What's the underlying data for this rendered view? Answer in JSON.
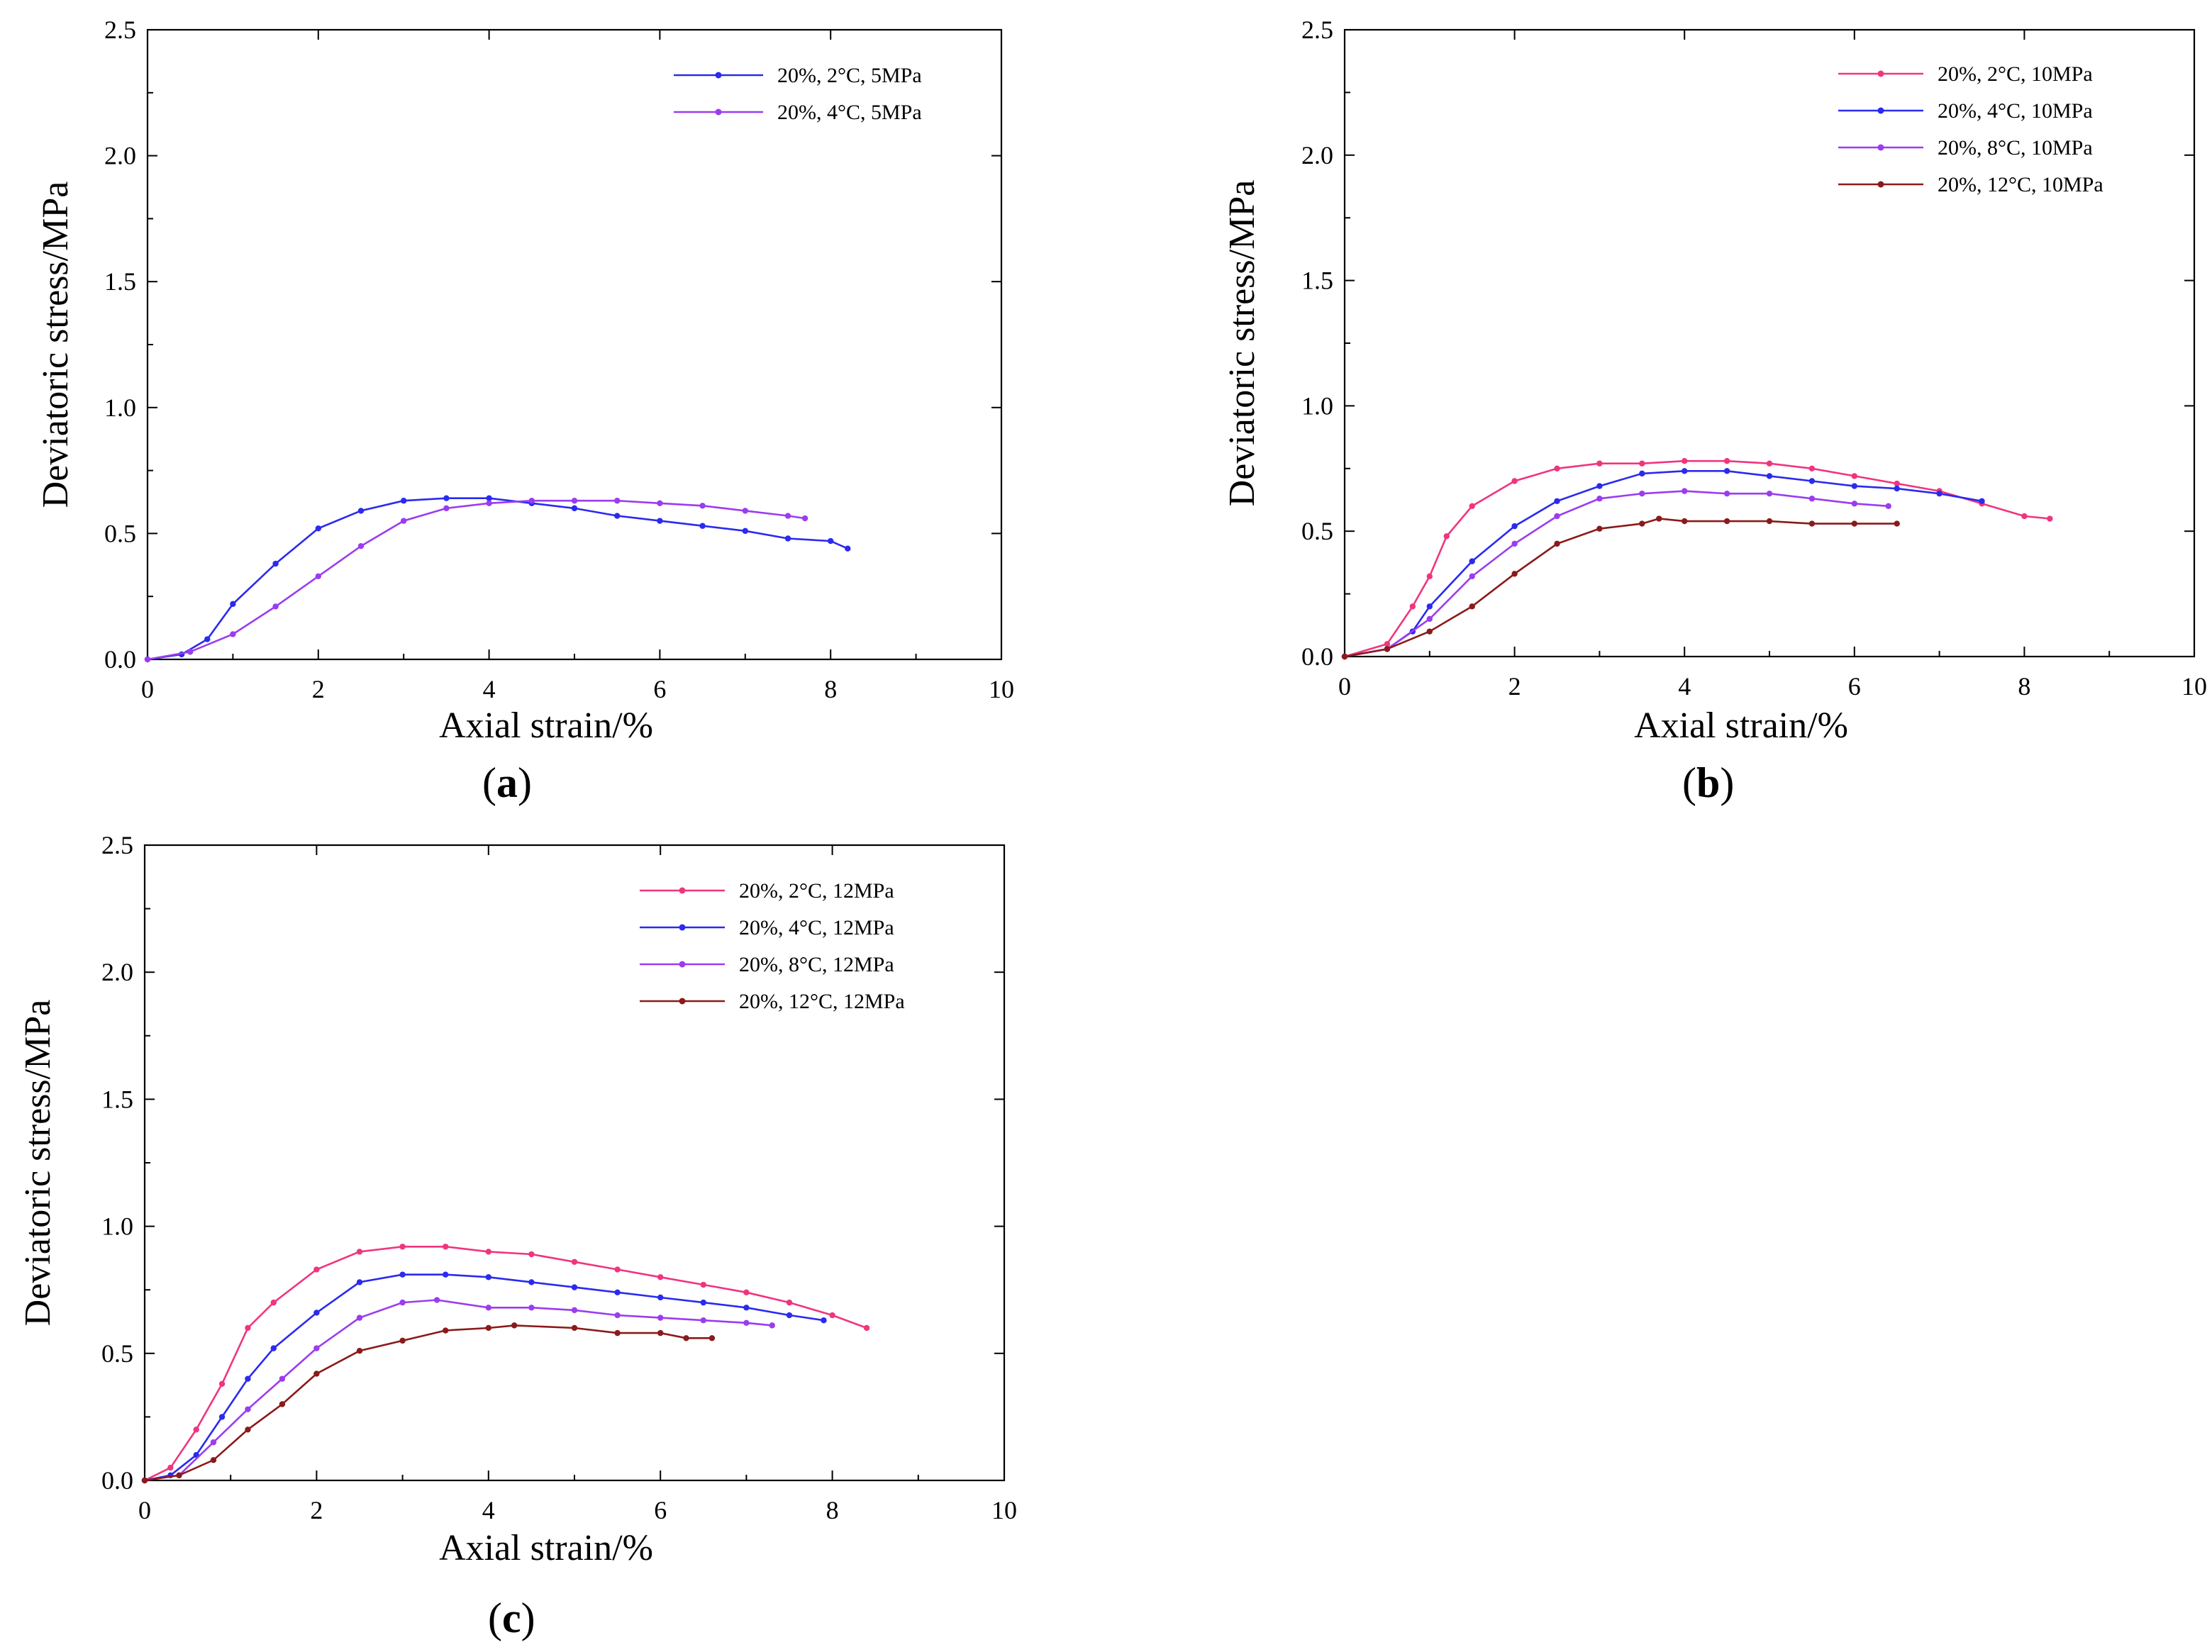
{
  "chart_data": [
    {
      "id": "a",
      "type": "line",
      "panel_label": "a",
      "xlabel": "Axial strain/%",
      "ylabel": "Deviatoric stress/MPa",
      "xlim": [
        0,
        10
      ],
      "ylim": [
        0,
        2.5
      ],
      "xticks": [
        0,
        2,
        4,
        6,
        8,
        10
      ],
      "yticks": [
        0.0,
        0.5,
        1.0,
        1.5,
        2.0,
        2.5
      ],
      "yticklabels": [
        "0.0",
        "0.5",
        "1.0",
        "1.5",
        "2.0",
        "2.5"
      ],
      "legend_position": "top-right",
      "series": [
        {
          "name": "20%, 2°C, 5MPa",
          "color": "#2a2af0",
          "x": [
            0,
            0.4,
            0.7,
            1.0,
            1.5,
            2.0,
            2.5,
            3.0,
            3.5,
            4.0,
            4.5,
            5.0,
            5.5,
            6.0,
            6.5,
            7.0,
            7.5,
            8.0,
            8.2
          ],
          "y": [
            0,
            0.02,
            0.08,
            0.22,
            0.38,
            0.52,
            0.59,
            0.63,
            0.64,
            0.64,
            0.62,
            0.6,
            0.57,
            0.55,
            0.53,
            0.51,
            0.48,
            0.47,
            0.44
          ]
        },
        {
          "name": "20%, 4°C, 5MPa",
          "color": "#9b3cf0",
          "x": [
            0,
            0.5,
            1.0,
            1.5,
            2.0,
            2.5,
            3.0,
            3.5,
            4.0,
            4.5,
            5.0,
            5.5,
            6.0,
            6.5,
            7.0,
            7.5,
            7.7
          ],
          "y": [
            0,
            0.03,
            0.1,
            0.21,
            0.33,
            0.45,
            0.55,
            0.6,
            0.62,
            0.63,
            0.63,
            0.63,
            0.62,
            0.61,
            0.59,
            0.57,
            0.56
          ]
        }
      ]
    },
    {
      "id": "b",
      "type": "line",
      "panel_label": "b",
      "xlabel": "Axial strain/%",
      "ylabel": "Deviatoric stress/MPa",
      "xlim": [
        0,
        10
      ],
      "ylim": [
        0,
        2.5
      ],
      "xticks": [
        0,
        2,
        4,
        6,
        8,
        10
      ],
      "yticks": [
        0.0,
        0.5,
        1.0,
        1.5,
        2.0,
        2.5
      ],
      "yticklabels": [
        "0.0",
        "0.5",
        "1.0",
        "1.5",
        "2.0",
        "2.5"
      ],
      "legend_position": "top-right",
      "series": [
        {
          "name": "20%, 2°C, 10MPa",
          "color": "#f0357f",
          "x": [
            0,
            0.5,
            0.8,
            1.0,
            1.2,
            1.5,
            2.0,
            2.5,
            3.0,
            3.5,
            4.0,
            4.5,
            5.0,
            5.5,
            6.0,
            6.5,
            7.0,
            7.5,
            8.0,
            8.3
          ],
          "y": [
            0,
            0.05,
            0.2,
            0.32,
            0.48,
            0.6,
            0.7,
            0.75,
            0.77,
            0.77,
            0.78,
            0.78,
            0.77,
            0.75,
            0.72,
            0.69,
            0.66,
            0.61,
            0.56,
            0.55
          ]
        },
        {
          "name": "20%, 4°C, 10MPa",
          "color": "#2a2af0",
          "x": [
            0,
            0.5,
            0.8,
            1.0,
            1.5,
            2.0,
            2.5,
            3.0,
            3.5,
            4.0,
            4.5,
            5.0,
            5.5,
            6.0,
            6.5,
            7.0,
            7.5
          ],
          "y": [
            0,
            0.03,
            0.1,
            0.2,
            0.38,
            0.52,
            0.62,
            0.68,
            0.73,
            0.74,
            0.74,
            0.72,
            0.7,
            0.68,
            0.67,
            0.65,
            0.62
          ]
        },
        {
          "name": "20%, 8°C, 10MPa",
          "color": "#9b3cf0",
          "x": [
            0,
            0.5,
            1.0,
            1.5,
            2.0,
            2.5,
            3.0,
            3.5,
            4.0,
            4.5,
            5.0,
            5.5,
            6.0,
            6.4
          ],
          "y": [
            0,
            0.03,
            0.15,
            0.32,
            0.45,
            0.56,
            0.63,
            0.65,
            0.66,
            0.65,
            0.65,
            0.63,
            0.61,
            0.6
          ]
        },
        {
          "name": "20%, 12°C, 10MPa",
          "color": "#8b1a1a",
          "x": [
            0,
            0.5,
            1.0,
            1.5,
            2.0,
            2.5,
            3.0,
            3.5,
            3.7,
            4.0,
            4.5,
            5.0,
            5.5,
            6.0,
            6.5
          ],
          "y": [
            0,
            0.03,
            0.1,
            0.2,
            0.33,
            0.45,
            0.51,
            0.53,
            0.55,
            0.54,
            0.54,
            0.54,
            0.53,
            0.53,
            0.53
          ]
        }
      ]
    },
    {
      "id": "c",
      "type": "line",
      "panel_label": "c",
      "xlabel": "Axial strain/%",
      "ylabel": "Deviatoric stress/MPa",
      "xlim": [
        0,
        10
      ],
      "ylim": [
        0,
        2.5
      ],
      "xticks": [
        0,
        2,
        4,
        6,
        8,
        10
      ],
      "yticks": [
        0.0,
        0.5,
        1.0,
        1.5,
        2.0,
        2.5
      ],
      "yticklabels": [
        "0.0",
        "0.5",
        "1.0",
        "1.5",
        "2.0",
        "2.5"
      ],
      "legend_position": "top-right",
      "series": [
        {
          "name": "20%, 2°C, 12MPa",
          "color": "#f0357f",
          "x": [
            0,
            0.3,
            0.6,
            0.9,
            1.2,
            1.5,
            2.0,
            2.5,
            3.0,
            3.5,
            4.0,
            4.5,
            5.0,
            5.5,
            6.0,
            6.5,
            7.0,
            7.5,
            8.0,
            8.4
          ],
          "y": [
            0,
            0.05,
            0.2,
            0.38,
            0.6,
            0.7,
            0.83,
            0.9,
            0.92,
            0.92,
            0.9,
            0.89,
            0.86,
            0.83,
            0.8,
            0.77,
            0.74,
            0.7,
            0.65,
            0.6
          ]
        },
        {
          "name": "20%, 4°C, 12MPa",
          "color": "#2a2af0",
          "x": [
            0,
            0.3,
            0.6,
            0.9,
            1.2,
            1.5,
            2.0,
            2.5,
            3.0,
            3.5,
            4.0,
            4.5,
            5.0,
            5.5,
            6.0,
            6.5,
            7.0,
            7.5,
            7.9
          ],
          "y": [
            0,
            0.02,
            0.1,
            0.25,
            0.4,
            0.52,
            0.66,
            0.78,
            0.81,
            0.81,
            0.8,
            0.78,
            0.76,
            0.74,
            0.72,
            0.7,
            0.68,
            0.65,
            0.63
          ]
        },
        {
          "name": "20%, 8°C, 12MPa",
          "color": "#9b3cf0",
          "x": [
            0,
            0.4,
            0.8,
            1.2,
            1.6,
            2.0,
            2.5,
            3.0,
            3.4,
            4.0,
            4.5,
            5.0,
            5.5,
            6.0,
            6.5,
            7.0,
            7.3
          ],
          "y": [
            0,
            0.02,
            0.15,
            0.28,
            0.4,
            0.52,
            0.64,
            0.7,
            0.71,
            0.68,
            0.68,
            0.67,
            0.65,
            0.64,
            0.63,
            0.62,
            0.61
          ]
        },
        {
          "name": "20%, 12°C, 12MPa",
          "color": "#8b1a1a",
          "x": [
            0,
            0.4,
            0.8,
            1.2,
            1.6,
            2.0,
            2.5,
            3.0,
            3.5,
            4.0,
            4.3,
            5.0,
            5.5,
            6.0,
            6.3,
            6.6
          ],
          "y": [
            0,
            0.02,
            0.08,
            0.2,
            0.3,
            0.42,
            0.51,
            0.55,
            0.59,
            0.6,
            0.61,
            0.6,
            0.58,
            0.58,
            0.56,
            0.56
          ]
        }
      ]
    }
  ]
}
